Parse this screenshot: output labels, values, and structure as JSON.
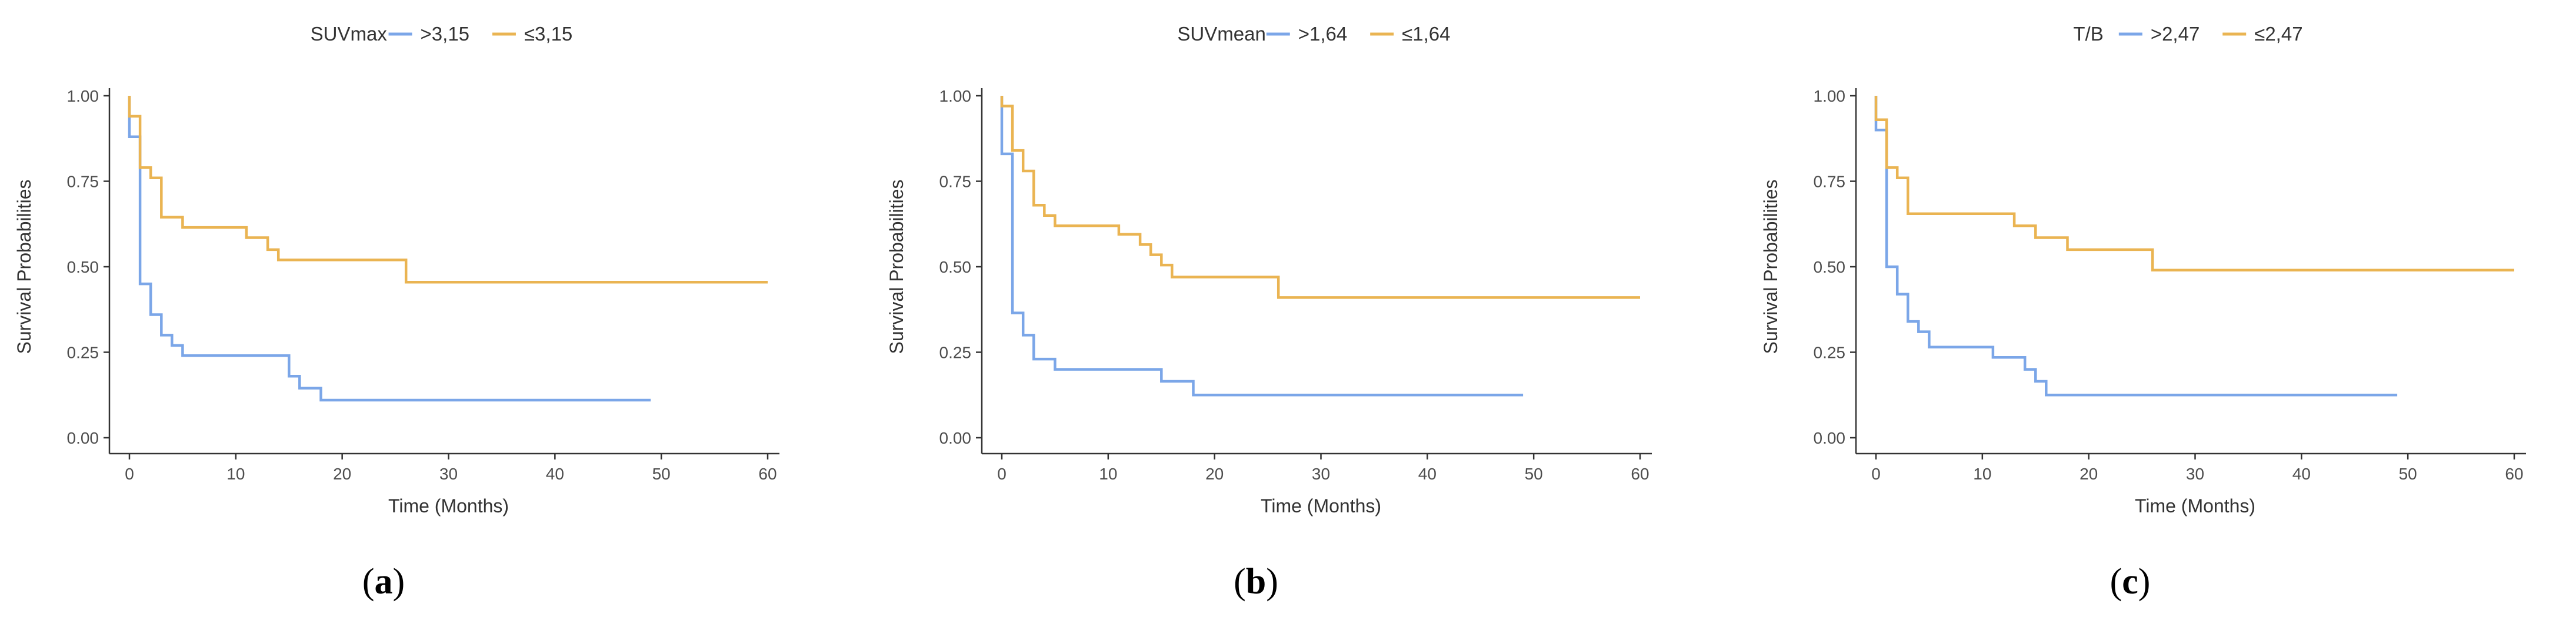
{
  "colors": {
    "high": "#7ba6e8",
    "low": "#eab452",
    "axis": "#333333",
    "text": "#4d4d4d"
  },
  "chart_data": [
    {
      "type": "line",
      "subtitle": "(a)",
      "sub_letter": "a",
      "legend_title": "SUVmax",
      "legend_position": "top",
      "xlabel": "Time (Months)",
      "ylabel": "Survival Probabilities",
      "xlim": [
        0,
        60
      ],
      "ylim": [
        0,
        1
      ],
      "xticks": [
        0,
        10,
        20,
        30,
        40,
        50,
        60
      ],
      "xtick_labels": [
        "0",
        "10",
        "20",
        "30",
        "40",
        "50",
        "60"
      ],
      "yticks": [
        0,
        0.25,
        0.5,
        0.75,
        1
      ],
      "ytick_labels": [
        "0.00",
        "0.25",
        "0.50",
        "0.75",
        "1.00"
      ],
      "series": [
        {
          "name": ">3,15",
          "color_key": "high",
          "points": [
            [
              0,
              1.0
            ],
            [
              0,
              0.88
            ],
            [
              1,
              0.88
            ],
            [
              1,
              0.45
            ],
            [
              2,
              0.45
            ],
            [
              2,
              0.36
            ],
            [
              3,
              0.36
            ],
            [
              3,
              0.3
            ],
            [
              4,
              0.3
            ],
            [
              4,
              0.27
            ],
            [
              5,
              0.27
            ],
            [
              5,
              0.24
            ],
            [
              15,
              0.24
            ],
            [
              15,
              0.18
            ],
            [
              16,
              0.18
            ],
            [
              16,
              0.145
            ],
            [
              18,
              0.145
            ],
            [
              18,
              0.11
            ],
            [
              49,
              0.11
            ]
          ]
        },
        {
          "name": "≤3,15",
          "color_key": "low",
          "points": [
            [
              0,
              1.0
            ],
            [
              0,
              0.94
            ],
            [
              1,
              0.94
            ],
            [
              1,
              0.79
            ],
            [
              2,
              0.79
            ],
            [
              2,
              0.76
            ],
            [
              3,
              0.76
            ],
            [
              3,
              0.645
            ],
            [
              5,
              0.645
            ],
            [
              5,
              0.615
            ],
            [
              11,
              0.615
            ],
            [
              11,
              0.585
            ],
            [
              13,
              0.585
            ],
            [
              13,
              0.55
            ],
            [
              14,
              0.55
            ],
            [
              14,
              0.52
            ],
            [
              26,
              0.52
            ],
            [
              26,
              0.455
            ],
            [
              60,
              0.455
            ]
          ]
        }
      ]
    },
    {
      "type": "line",
      "subtitle": "(b)",
      "sub_letter": "b",
      "legend_title": "SUVmean",
      "legend_position": "top",
      "xlabel": "Time (Months)",
      "ylabel": "Survival Probabilities",
      "xlim": [
        0,
        60
      ],
      "ylim": [
        0,
        1
      ],
      "xticks": [
        0,
        10,
        20,
        30,
        40,
        50,
        60
      ],
      "xtick_labels": [
        "0",
        "10",
        "20",
        "30",
        "40",
        "50",
        "60"
      ],
      "yticks": [
        0,
        0.25,
        0.5,
        0.75,
        1
      ],
      "ytick_labels": [
        "0.00",
        "0.25",
        "0.50",
        "0.75",
        "1.00"
      ],
      "series": [
        {
          "name": ">1,64",
          "color_key": "high",
          "points": [
            [
              0,
              1.0
            ],
            [
              0,
              0.83
            ],
            [
              1,
              0.83
            ],
            [
              1,
              0.365
            ],
            [
              2,
              0.365
            ],
            [
              2,
              0.3
            ],
            [
              3,
              0.3
            ],
            [
              3,
              0.23
            ],
            [
              5,
              0.23
            ],
            [
              5,
              0.2
            ],
            [
              15,
              0.2
            ],
            [
              15,
              0.165
            ],
            [
              18,
              0.165
            ],
            [
              18,
              0.125
            ],
            [
              49,
              0.125
            ]
          ]
        },
        {
          "name": "≤1,64",
          "color_key": "low",
          "points": [
            [
              0,
              1.0
            ],
            [
              0,
              0.97
            ],
            [
              1,
              0.97
            ],
            [
              1,
              0.84
            ],
            [
              2,
              0.84
            ],
            [
              2,
              0.78
            ],
            [
              3,
              0.78
            ],
            [
              3,
              0.68
            ],
            [
              4,
              0.68
            ],
            [
              4,
              0.65
            ],
            [
              5,
              0.65
            ],
            [
              5,
              0.62
            ],
            [
              11,
              0.62
            ],
            [
              11,
              0.595
            ],
            [
              13,
              0.595
            ],
            [
              13,
              0.565
            ],
            [
              14,
              0.565
            ],
            [
              14,
              0.535
            ],
            [
              15,
              0.535
            ],
            [
              15,
              0.505
            ],
            [
              16,
              0.505
            ],
            [
              16,
              0.47
            ],
            [
              26,
              0.47
            ],
            [
              26,
              0.41
            ],
            [
              60,
              0.41
            ]
          ]
        }
      ]
    },
    {
      "type": "line",
      "subtitle": "(c)",
      "sub_letter": "c",
      "legend_title": "T/B",
      "legend_position": "top",
      "xlabel": "Time (Months)",
      "ylabel": "Survival Probabilities",
      "xlim": [
        0,
        60
      ],
      "ylim": [
        0,
        1
      ],
      "xticks": [
        0,
        10,
        20,
        30,
        40,
        50,
        60
      ],
      "xtick_labels": [
        "0",
        "10",
        "20",
        "30",
        "40",
        "50",
        "60"
      ],
      "yticks": [
        0,
        0.25,
        0.5,
        0.75,
        1
      ],
      "ytick_labels": [
        "0.00",
        "0.25",
        "0.50",
        "0.75",
        "1.00"
      ],
      "series": [
        {
          "name": ">2,47",
          "color_key": "high",
          "points": [
            [
              0,
              1.0
            ],
            [
              0,
              0.9
            ],
            [
              1,
              0.9
            ],
            [
              1,
              0.5
            ],
            [
              2,
              0.5
            ],
            [
              2,
              0.42
            ],
            [
              3,
              0.42
            ],
            [
              3,
              0.34
            ],
            [
              4,
              0.34
            ],
            [
              4,
              0.31
            ],
            [
              5,
              0.31
            ],
            [
              5,
              0.265
            ],
            [
              11,
              0.265
            ],
            [
              11,
              0.235
            ],
            [
              14,
              0.235
            ],
            [
              14,
              0.2
            ],
            [
              15,
              0.2
            ],
            [
              15,
              0.165
            ],
            [
              16,
              0.165
            ],
            [
              16,
              0.125
            ],
            [
              49,
              0.125
            ]
          ]
        },
        {
          "name": "≤2,47",
          "color_key": "low",
          "points": [
            [
              0,
              1.0
            ],
            [
              0,
              0.93
            ],
            [
              1,
              0.93
            ],
            [
              1,
              0.79
            ],
            [
              2,
              0.79
            ],
            [
              2,
              0.76
            ],
            [
              3,
              0.76
            ],
            [
              3,
              0.655
            ],
            [
              13,
              0.655
            ],
            [
              13,
              0.62
            ],
            [
              15,
              0.62
            ],
            [
              15,
              0.585
            ],
            [
              18,
              0.585
            ],
            [
              18,
              0.55
            ],
            [
              26,
              0.55
            ],
            [
              26,
              0.49
            ],
            [
              60,
              0.49
            ]
          ]
        }
      ]
    }
  ]
}
